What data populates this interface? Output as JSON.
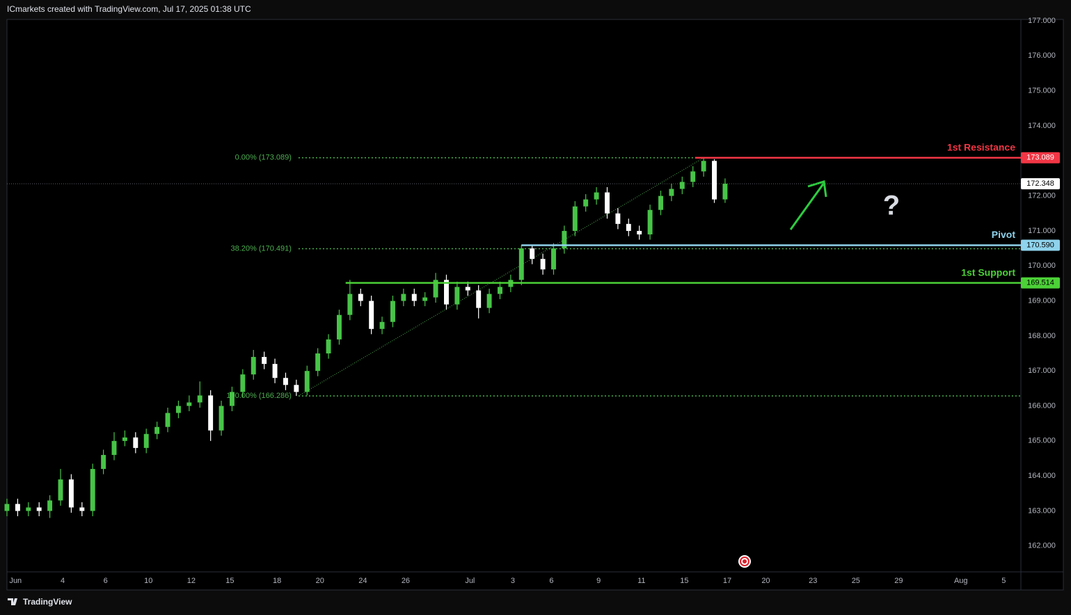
{
  "header": {
    "text": "ICmarkets created with TradingView.com, Jul 17, 2025 01:38 UTC"
  },
  "footer": {
    "logo_text": "TradingView"
  },
  "chart_data": {
    "type": "candlestick",
    "x": [
      0,
      0.5,
      1,
      1.5,
      2,
      2.5,
      3,
      3.5,
      4,
      4.5,
      5,
      5.5,
      6,
      6.5,
      7,
      7.5,
      8,
      8.5,
      9,
      9.5,
      10,
      10.5,
      11,
      11.5,
      12,
      12.5,
      13,
      13.5,
      14,
      14.5,
      15,
      15.5,
      16,
      16.5,
      17,
      17.5,
      18,
      18.5,
      19,
      19.5,
      20,
      20.5,
      21,
      21.5,
      22,
      22.5,
      23,
      23.5,
      24,
      24.5,
      25,
      25.5,
      26,
      26.5,
      27,
      27.5,
      28,
      28.5,
      29,
      29.5,
      30,
      30.5,
      31,
      31.5,
      32,
      32.5,
      33,
      33.5
    ],
    "open": [
      163.0,
      163.2,
      163.0,
      163.1,
      163.0,
      163.3,
      163.9,
      163.1,
      163.0,
      164.2,
      164.6,
      165.0,
      165.1,
      164.8,
      165.2,
      165.4,
      165.8,
      166.0,
      166.1,
      166.3,
      165.3,
      166.0,
      166.4,
      166.9,
      167.4,
      167.2,
      166.8,
      166.6,
      166.4,
      167.0,
      167.5,
      167.9,
      168.6,
      169.2,
      169.0,
      168.2,
      168.4,
      169.0,
      169.2,
      169.0,
      169.1,
      169.6,
      168.9,
      169.4,
      169.3,
      168.8,
      169.2,
      169.4,
      169.6,
      170.5,
      170.2,
      169.9,
      170.5,
      171.0,
      171.7,
      171.9,
      172.1,
      171.5,
      171.2,
      171.0,
      170.9,
      171.6,
      172.0,
      172.2,
      172.4,
      172.7,
      173.0,
      171.9
    ],
    "high": [
      163.35,
      163.35,
      163.25,
      163.25,
      163.45,
      164.2,
      164.05,
      163.25,
      164.35,
      164.75,
      165.25,
      165.3,
      165.25,
      165.35,
      165.55,
      165.95,
      166.15,
      166.3,
      166.7,
      166.45,
      166.15,
      166.55,
      167.05,
      167.6,
      167.55,
      167.35,
      166.95,
      166.75,
      167.15,
      167.65,
      168.05,
      168.75,
      169.6,
      169.35,
      169.15,
      168.55,
      169.15,
      169.35,
      169.35,
      169.25,
      169.8,
      169.75,
      169.55,
      169.55,
      169.45,
      169.35,
      169.55,
      169.75,
      170.6,
      170.6,
      170.35,
      170.65,
      171.15,
      171.85,
      172.05,
      172.25,
      172.25,
      171.65,
      171.35,
      171.15,
      171.75,
      172.15,
      172.35,
      172.55,
      172.85,
      173.089,
      173.05,
      172.5
    ],
    "low": [
      162.85,
      162.85,
      162.85,
      162.85,
      162.8,
      163.15,
      162.95,
      162.85,
      162.85,
      164.05,
      164.45,
      164.85,
      164.65,
      164.65,
      165.05,
      165.25,
      165.65,
      165.85,
      165.95,
      165.0,
      165.15,
      165.85,
      166.25,
      166.75,
      167.05,
      166.65,
      166.45,
      166.286,
      166.3,
      166.85,
      167.35,
      167.75,
      168.45,
      168.85,
      168.05,
      168.05,
      168.25,
      168.85,
      168.85,
      168.85,
      168.95,
      168.75,
      168.75,
      169.15,
      168.5,
      168.65,
      169.05,
      169.25,
      169.45,
      170.05,
      169.75,
      169.75,
      170.35,
      170.85,
      171.55,
      171.75,
      171.35,
      171.05,
      170.85,
      170.75,
      170.75,
      171.45,
      171.85,
      172.05,
      172.25,
      172.55,
      171.8,
      171.8
    ],
    "close": [
      163.2,
      163.0,
      163.1,
      163.0,
      163.3,
      163.9,
      163.1,
      163.0,
      164.2,
      164.6,
      165.0,
      165.1,
      164.8,
      165.2,
      165.4,
      165.8,
      166.0,
      166.1,
      166.3,
      165.3,
      166.0,
      166.4,
      166.9,
      167.4,
      167.2,
      166.8,
      166.6,
      166.4,
      167.0,
      167.5,
      167.9,
      168.6,
      169.2,
      169.0,
      168.2,
      168.4,
      169.0,
      169.2,
      169.0,
      169.1,
      169.6,
      168.9,
      169.4,
      169.3,
      168.8,
      169.2,
      169.4,
      169.6,
      170.5,
      170.2,
      169.9,
      170.5,
      171.0,
      171.7,
      171.9,
      172.1,
      171.5,
      171.2,
      171.0,
      170.9,
      171.6,
      172.0,
      172.2,
      172.4,
      172.7,
      173.0,
      171.9,
      172.348
    ],
    "up_color": "#47c447",
    "down_color": "#ffffff",
    "xlim": [
      0,
      47.3
    ],
    "xticks": [
      {
        "value": 0.4,
        "label": "Jun"
      },
      {
        "value": 2.6,
        "label": "4"
      },
      {
        "value": 4.6,
        "label": "6"
      },
      {
        "value": 6.6,
        "label": "10"
      },
      {
        "value": 8.6,
        "label": "12"
      },
      {
        "value": 10.4,
        "label": "15"
      },
      {
        "value": 12.6,
        "label": "18"
      },
      {
        "value": 14.6,
        "label": "20"
      },
      {
        "value": 16.6,
        "label": "24"
      },
      {
        "value": 18.6,
        "label": "26"
      },
      {
        "value": 21.6,
        "label": "Jul"
      },
      {
        "value": 23.6,
        "label": "3"
      },
      {
        "value": 25.4,
        "label": "6"
      },
      {
        "value": 27.6,
        "label": "9"
      },
      {
        "value": 29.6,
        "label": "11"
      },
      {
        "value": 31.6,
        "label": "15"
      },
      {
        "value": 33.6,
        "label": "17"
      },
      {
        "value": 35.4,
        "label": "20"
      },
      {
        "value": 37.6,
        "label": "23"
      },
      {
        "value": 39.6,
        "label": "25"
      },
      {
        "value": 41.6,
        "label": "29"
      },
      {
        "value": 44.5,
        "label": "Aug"
      },
      {
        "value": 46.5,
        "label": "5"
      }
    ],
    "ylim": [
      161.26,
      177.04
    ],
    "yticks": [
      {
        "value": 162,
        "label": "162.000"
      },
      {
        "value": 163,
        "label": "163.000"
      },
      {
        "value": 164,
        "label": "164.000"
      },
      {
        "value": 165,
        "label": "165.000"
      },
      {
        "value": 166,
        "label": "166.000"
      },
      {
        "value": 167,
        "label": "167.000"
      },
      {
        "value": 168,
        "label": "168.000"
      },
      {
        "value": 169,
        "label": "169.000"
      },
      {
        "value": 170,
        "label": "170.000"
      },
      {
        "value": 171,
        "label": "171.000"
      },
      {
        "value": 172,
        "label": "172.000"
      },
      {
        "value": 173,
        "label": "173.000"
      },
      {
        "value": 174,
        "label": "174.000"
      },
      {
        "value": 175,
        "label": "175.000"
      },
      {
        "value": 176,
        "label": "176.000"
      },
      {
        "value": 177,
        "label": "177.000"
      }
    ],
    "grid": false,
    "last_price": 172.348,
    "levels": [
      {
        "name": "1st Resistance",
        "value": 173.089,
        "value_label": "173.089",
        "start": 32.1,
        "color": "#f23645"
      },
      {
        "name": "Pivot",
        "value": 170.59,
        "value_label": "170.590",
        "start": 24.0,
        "color": "#8fd3ec"
      },
      {
        "name": "1st Support",
        "value": 169.514,
        "value_label": "169.514",
        "start": 15.8,
        "color": "#4cd137"
      }
    ],
    "fibonacci": {
      "color": "#4caf50",
      "from": {
        "x": 13.6,
        "y": 166.286
      },
      "to": {
        "x": 32.5,
        "y": 173.089
      },
      "levels": [
        {
          "value": 173.089,
          "label": "0.00% (173.089)"
        },
        {
          "value": 170.491,
          "label": "38.20% (170.491)"
        },
        {
          "value": 166.286,
          "label": "100.00% (166.286)"
        }
      ]
    },
    "annotation": "?"
  }
}
